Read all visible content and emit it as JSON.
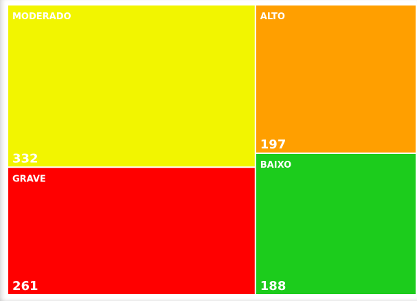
{
  "chart_data": {
    "type": "treemap",
    "title": "",
    "items": [
      {
        "name": "MODERADO",
        "value": 332,
        "color": "#f2f500"
      },
      {
        "name": "GRAVE",
        "value": 261,
        "color": "#ff0000"
      },
      {
        "name": "ALTO",
        "value": 197,
        "color": "#ff9f00"
      },
      {
        "name": "BAIXO",
        "value": 188,
        "color": "#1ccc1c"
      }
    ]
  }
}
